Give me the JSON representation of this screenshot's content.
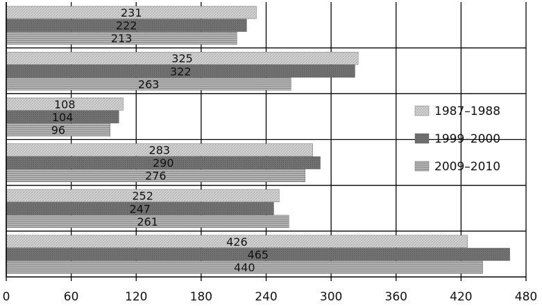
{
  "chart_data": {
    "type": "bar",
    "orientation": "horizontal",
    "title": "",
    "xlabel": "",
    "ylabel": "",
    "xlim": [
      0,
      480
    ],
    "xticks": [
      0,
      60,
      120,
      180,
      240,
      300,
      360,
      420,
      480
    ],
    "grid": "vertical",
    "legend_position": "right",
    "groups": 6,
    "series": [
      {
        "name": "1987–1988",
        "color": "#c8c8c8",
        "values": [
          231,
          325,
          108,
          283,
          252,
          426
        ]
      },
      {
        "name": "1999–2000",
        "color": "#6f6f6f",
        "values": [
          222,
          322,
          104,
          290,
          247,
          465
        ]
      },
      {
        "name": "2009–2010",
        "color": "#a3a3a3",
        "values": [
          213,
          263,
          96,
          276,
          261,
          440
        ]
      }
    ]
  }
}
